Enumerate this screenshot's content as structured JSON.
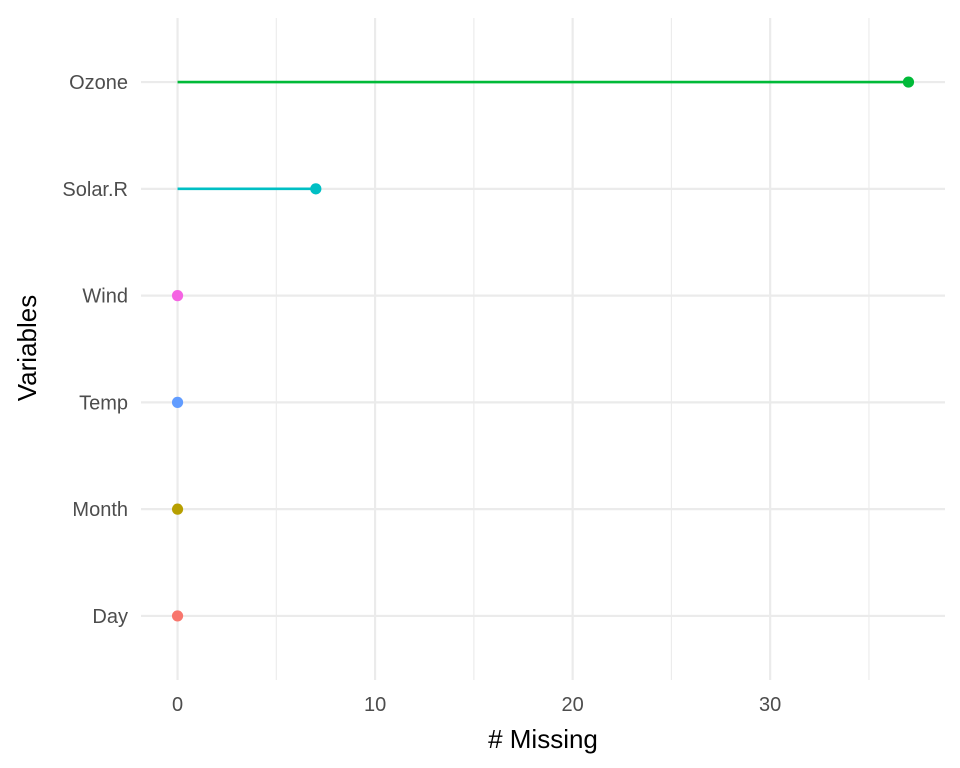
{
  "chart_data": {
    "type": "lollipop",
    "xlabel": "# Missing",
    "ylabel": "Variables",
    "xlim": [
      -1.85,
      38.85
    ],
    "x_ticks": [
      0,
      10,
      20,
      30
    ],
    "x_tick_labels": [
      "0",
      "10",
      "20",
      "30"
    ],
    "x_minor_ticks": [
      5,
      15,
      25,
      35
    ],
    "grid": true,
    "legend": "none",
    "categories": [
      "Day",
      "Month",
      "Temp",
      "Wind",
      "Solar.R",
      "Ozone"
    ],
    "values": [
      0,
      0,
      0,
      0,
      7,
      37
    ],
    "colors": [
      "#F8766D",
      "#B79F00",
      "#619CFF",
      "#F564E3",
      "#00BFC4",
      "#00BA38"
    ]
  }
}
